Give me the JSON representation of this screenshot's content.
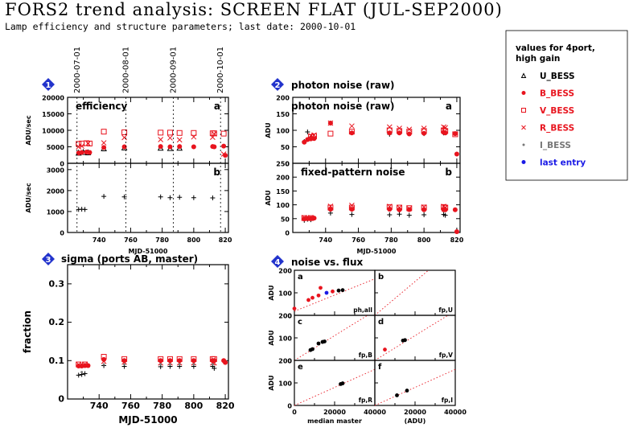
{
  "page": {
    "title": "FORS2 trend analysis: SCREEN FLAT (JUL-SEP2000)",
    "subtitle": "Lamp efficiency and structure parameters; last date: 2000-10-01"
  },
  "legend": {
    "heading_line1": "values for 4port,",
    "heading_line2": "high gain",
    "items": [
      {
        "label": "U_BESS",
        "marker": "triangle-open",
        "color": "#000000"
      },
      {
        "label": "B_BESS",
        "marker": "dot",
        "color": "#e8141e"
      },
      {
        "label": "V_BESS",
        "marker": "square-open",
        "color": "#e8141e"
      },
      {
        "label": "R_BESS",
        "marker": "cross",
        "color": "#e8141e"
      },
      {
        "label": "I_BESS",
        "marker": "small-dot",
        "color": "#777777"
      },
      {
        "label": "last entry",
        "marker": "dot",
        "color": "#1a1ae6"
      }
    ]
  },
  "chart_data": [
    {
      "id": "efficiency",
      "type": "scatter",
      "panel_number": "1",
      "title": "efficiency",
      "panel_letter": "a",
      "ylabel": "ADU/sec",
      "xlim": [
        720,
        822
      ],
      "ylim": [
        0,
        20000
      ],
      "yticks": [
        0,
        5000,
        10000,
        15000,
        20000
      ],
      "date_labels": [
        {
          "mjd": 726,
          "label": "2000-07-01"
        },
        {
          "mjd": 757,
          "label": "2000-08-01"
        },
        {
          "mjd": 787,
          "label": "2000-09-01"
        },
        {
          "mjd": 817,
          "label": "2000-10-01"
        }
      ],
      "series": [
        {
          "name": "U_BESS",
          "marker": "triangle-open",
          "color": "#000000",
          "x": [
            727,
            730,
            733,
            743,
            756,
            779,
            785,
            791
          ],
          "y": [
            3200,
            3400,
            3300,
            4500,
            4800,
            4700,
            4600,
            4700
          ]
        },
        {
          "name": "B_BESS",
          "marker": "dot",
          "color": "#e8141e",
          "x": [
            727,
            729,
            732,
            734,
            743,
            756,
            779,
            785,
            791,
            800,
            812,
            813,
            819,
            820
          ],
          "y": [
            3100,
            3300,
            3400,
            3300,
            4800,
            5000,
            5100,
            5000,
            5100,
            5000,
            5100,
            5000,
            5200,
            2400
          ]
        },
        {
          "name": "V_BESS",
          "marker": "square-open",
          "color": "#e8141e",
          "x": [
            727,
            729,
            732,
            734,
            743,
            756,
            779,
            785,
            791,
            800,
            812,
            813,
            819
          ],
          "y": [
            5900,
            6000,
            6100,
            6000,
            9600,
            9400,
            9300,
            9300,
            9200,
            9200,
            9100,
            9100,
            9000
          ]
        },
        {
          "name": "R_BESS",
          "marker": "cross",
          "color": "#e8141e",
          "x": [
            727,
            729,
            733,
            743,
            756,
            779,
            785,
            791,
            800,
            812,
            813,
            819
          ],
          "y": [
            5000,
            5200,
            6000,
            6200,
            7800,
            7200,
            7700,
            7100,
            8000,
            7900,
            8900,
            2800
          ]
        }
      ]
    },
    {
      "id": "efficiency_b",
      "type": "scatter",
      "panel_letter": "b",
      "ylabel": "ADU/sec",
      "xlabel": "MJD-51000",
      "xlim": [
        720,
        822
      ],
      "ylim": [
        0,
        3300
      ],
      "yticks": [
        0,
        1000,
        2000,
        3000
      ],
      "xticks": [
        740,
        760,
        780,
        800,
        820
      ],
      "series": [
        {
          "name": "U_BESS",
          "marker": "plus",
          "color": "#000000",
          "x": [
            727,
            729,
            731,
            743,
            756,
            779,
            785,
            791,
            800,
            812
          ],
          "y": [
            1100,
            1110,
            1100,
            1720,
            1700,
            1700,
            1660,
            1680,
            1660,
            1650
          ]
        }
      ]
    },
    {
      "id": "photon_noise",
      "type": "scatter",
      "panel_number": "2",
      "title": "photon noise (raw)",
      "panel_letter": "a",
      "ylabel": "ADU",
      "xlim": [
        720,
        822
      ],
      "ylim": [
        0,
        200
      ],
      "yticks": [
        0,
        50,
        100,
        150,
        200
      ],
      "series": [
        {
          "name": "U_BESS",
          "marker": "plus",
          "color": "#000000",
          "x": [
            727,
            729,
            731,
            743,
            779,
            800,
            812
          ],
          "y": [
            66,
            95,
            80,
            122,
            88,
            90,
            92
          ]
        },
        {
          "name": "B_BESS",
          "marker": "dot",
          "color": "#e8141e",
          "x": [
            727,
            729,
            731,
            733,
            743,
            756,
            779,
            785,
            791,
            800,
            812,
            813,
            819,
            820
          ],
          "y": [
            64,
            72,
            74,
            75,
            122,
            92,
            92,
            92,
            89,
            91,
            94,
            92,
            90,
            28
          ]
        },
        {
          "name": "V_BESS",
          "marker": "square-open",
          "color": "#e8141e",
          "x": [
            731,
            733,
            743,
            756,
            779,
            785,
            791,
            800,
            812,
            813,
            819
          ],
          "y": [
            80,
            82,
            90,
            96,
            100,
            98,
            96,
            98,
            100,
            98,
            88
          ]
        },
        {
          "name": "R_BESS",
          "marker": "cross",
          "color": "#e8141e",
          "x": [
            731,
            733,
            743,
            756,
            779,
            785,
            791,
            800,
            812,
            813
          ],
          "y": [
            84,
            86,
            122,
            113,
            110,
            106,
            103,
            106,
            110,
            108
          ]
        }
      ]
    },
    {
      "id": "fixed_pattern_noise",
      "type": "scatter",
      "title": "fixed-pattern noise",
      "panel_letter": "b",
      "ylabel": "ADU",
      "xlabel": "MJD-51000",
      "xlim": [
        720,
        822
      ],
      "ylim": [
        0,
        250
      ],
      "yticks": [
        0,
        50,
        100,
        150,
        200,
        250
      ],
      "xticks": [
        740,
        760,
        780,
        800,
        820
      ],
      "series": [
        {
          "name": "U_BESS",
          "marker": "plus",
          "color": "#000000",
          "x": [
            727,
            729,
            731,
            743,
            756,
            779,
            785,
            791,
            800,
            812,
            813
          ],
          "y": [
            44,
            48,
            46,
            70,
            65,
            64,
            66,
            62,
            64,
            65,
            62
          ]
        },
        {
          "name": "B_BESS",
          "marker": "dot",
          "color": "#e8141e",
          "x": [
            727,
            729,
            731,
            733,
            743,
            756,
            779,
            785,
            791,
            800,
            812,
            813,
            819,
            820
          ],
          "y": [
            49,
            51,
            50,
            52,
            84,
            84,
            84,
            82,
            83,
            82,
            82,
            82,
            82,
            3
          ]
        },
        {
          "name": "V_BESS",
          "marker": "square-open",
          "color": "#e8141e",
          "x": [
            727,
            731,
            743,
            756,
            779,
            785,
            791,
            800,
            812,
            813
          ],
          "y": [
            52,
            52,
            90,
            90,
            92,
            90,
            88,
            90,
            92,
            90
          ]
        },
        {
          "name": "R_BESS",
          "marker": "cross",
          "color": "#e8141e",
          "x": [
            727,
            731,
            743,
            756,
            779,
            785,
            791,
            800,
            812,
            813
          ],
          "y": [
            54,
            54,
            95,
            98,
            94,
            90,
            86,
            92,
            94,
            90
          ]
        }
      ]
    },
    {
      "id": "sigma",
      "type": "scatter",
      "panel_number": "3",
      "title": "sigma (ports AB, master)",
      "ylabel": "fraction",
      "xlabel": "MJD-51000",
      "xlim": [
        720,
        822
      ],
      "ylim": [
        0,
        0.35
      ],
      "yticks": [
        0,
        0.1,
        0.2,
        0.3
      ],
      "xticks": [
        740,
        760,
        780,
        800,
        820
      ],
      "series": [
        {
          "name": "U_BESS",
          "marker": "plus",
          "color": "#000000",
          "x": [
            727,
            729,
            731,
            743,
            756,
            779,
            785,
            791,
            800,
            812,
            813
          ],
          "y": [
            0.062,
            0.064,
            0.066,
            0.087,
            0.085,
            0.084,
            0.085,
            0.085,
            0.085,
            0.085,
            0.08
          ]
        },
        {
          "name": "B_BESS",
          "marker": "dot",
          "color": "#e8141e",
          "x": [
            727,
            729,
            731,
            733,
            743,
            756,
            779,
            785,
            791,
            800,
            812,
            813,
            819,
            820
          ],
          "y": [
            0.086,
            0.086,
            0.087,
            0.087,
            0.103,
            0.1,
            0.1,
            0.1,
            0.1,
            0.1,
            0.1,
            0.1,
            0.1,
            0.095
          ]
        },
        {
          "name": "V_BESS",
          "marker": "square-open",
          "color": "#e8141e",
          "x": [
            727,
            731,
            743,
            756,
            779,
            785,
            791,
            800,
            812,
            813
          ],
          "y": [
            0.09,
            0.09,
            0.11,
            0.104,
            0.104,
            0.104,
            0.104,
            0.104,
            0.104,
            0.104
          ]
        },
        {
          "name": "R_BESS",
          "marker": "cross",
          "color": "#e8141e",
          "x": [
            727,
            731,
            743,
            756,
            779,
            785,
            791,
            800,
            812,
            813
          ],
          "y": [
            0.09,
            0.09,
            0.098,
            0.096,
            0.094,
            0.094,
            0.094,
            0.094,
            0.094,
            0.094
          ]
        },
        {
          "name": "I_BESS",
          "marker": "small-dot",
          "color": "#777777",
          "x": [
            729,
            743,
            756,
            779,
            785,
            791,
            800,
            812
          ],
          "y": [
            0.07,
            0.09,
            0.09,
            0.09,
            0.09,
            0.09,
            0.09,
            0.09
          ]
        }
      ]
    },
    {
      "id": "noise_vs_flux",
      "type": "scatter",
      "panel_number": "4",
      "title": "noise vs. flux",
      "ylabel": "ADU",
      "xlabel_left": "median master",
      "xlabel_right": "(ADU)",
      "xlim": [
        0,
        40000
      ],
      "ylim": [
        0,
        200
      ],
      "yticks": [
        0,
        100,
        200
      ],
      "xticks": [
        0,
        20000,
        40000
      ],
      "xtick_labels_left": [
        "0",
        "20000",
        "40000"
      ],
      "xtick_labels_right": [
        "20000",
        "40000"
      ],
      "subpanels": [
        {
          "letter": "a",
          "tag": "ph,all",
          "curve_a": 0.6,
          "points": [
            {
              "x": 0,
              "y": 30,
              "color": "#e8141e"
            },
            {
              "x": 7000,
              "y": 68,
              "color": "#e8141e"
            },
            {
              "x": 9000,
              "y": 78,
              "color": "#e8141e"
            },
            {
              "x": 12000,
              "y": 88,
              "color": "#e8141e"
            },
            {
              "x": 13000,
              "y": 122,
              "color": "#e8141e"
            },
            {
              "x": 16000,
              "y": 100,
              "color": "#1a1ae6"
            },
            {
              "x": 19000,
              "y": 106,
              "color": "#e8141e"
            },
            {
              "x": 22000,
              "y": 110,
              "color": "#000000"
            },
            {
              "x": 24000,
              "y": 112,
              "color": "#000000"
            }
          ]
        },
        {
          "letter": "b",
          "tag": "fp,U",
          "curve_a": 0.0075,
          "points": []
        },
        {
          "letter": "c",
          "tag": "fp,B",
          "curve_a": 0.0055,
          "points": [
            {
              "x": 8000,
              "y": 46,
              "color": "#000000"
            },
            {
              "x": 9000,
              "y": 50,
              "color": "#000000"
            },
            {
              "x": 12000,
              "y": 75,
              "color": "#000000"
            },
            {
              "x": 14000,
              "y": 82,
              "color": "#000000"
            },
            {
              "x": 15000,
              "y": 84,
              "color": "#000000"
            }
          ]
        },
        {
          "letter": "d",
          "tag": "fp,V",
          "curve_a": 0.0055,
          "points": [
            {
              "x": 5000,
              "y": 48,
              "color": "#e8141e"
            },
            {
              "x": 14000,
              "y": 88,
              "color": "#000000"
            },
            {
              "x": 15000,
              "y": 90,
              "color": "#000000"
            }
          ]
        },
        {
          "letter": "e",
          "tag": "fp,R",
          "curve_a": 0.004,
          "points": [
            {
              "x": 23000,
              "y": 95,
              "color": "#000000"
            },
            {
              "x": 24000,
              "y": 98,
              "color": "#000000"
            }
          ]
        },
        {
          "letter": "f",
          "tag": "fp,I",
          "curve_a": 0.004,
          "points": [
            {
              "x": 11000,
              "y": 45,
              "color": "#000000"
            },
            {
              "x": 16000,
              "y": 66,
              "color": "#000000"
            }
          ]
        }
      ]
    }
  ]
}
